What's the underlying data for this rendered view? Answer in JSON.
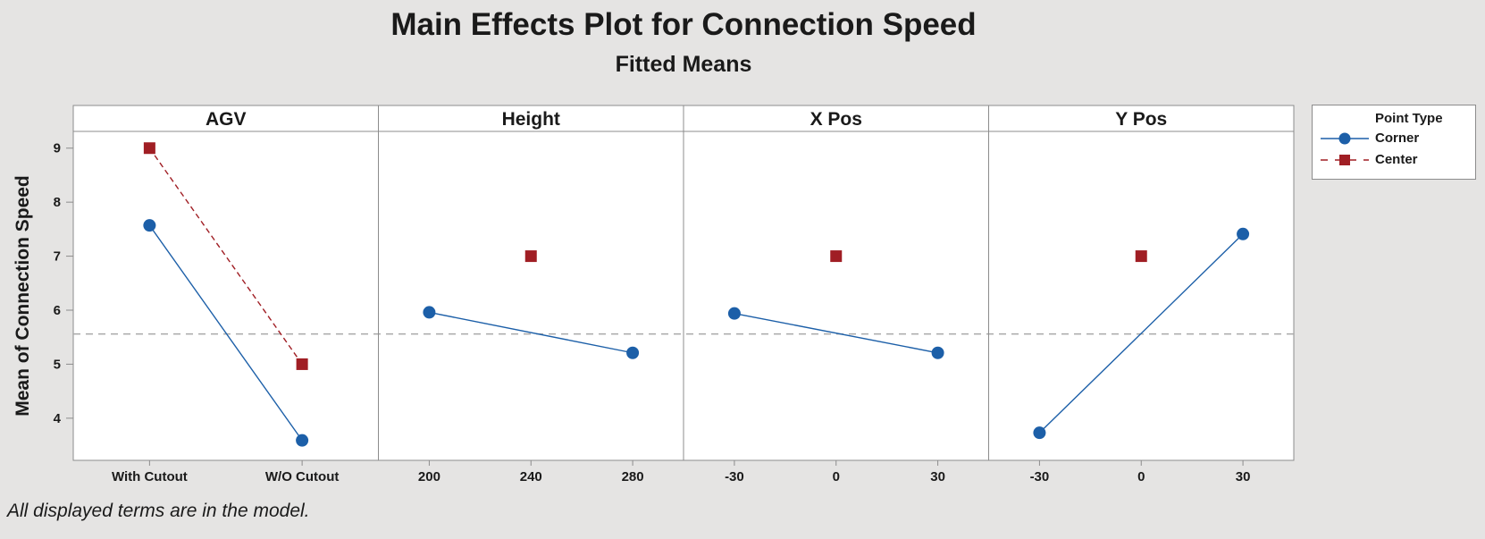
{
  "chart_data": {
    "type": "line",
    "title": "Main Effects Plot for Connection Speed",
    "subtitle": "Fitted Means",
    "ylabel": "Mean of Connection Speed",
    "ylim": [
      3.22,
      9.31
    ],
    "y_ticks": [
      9,
      8,
      7,
      6,
      5,
      4
    ],
    "grid": "off",
    "reference_line": {
      "value": 5.56,
      "style": "dashed",
      "color": "#A9A9A9"
    },
    "legend": {
      "position": "top-right",
      "title": "Point Type",
      "items": [
        {
          "label": "Corner",
          "marker": "circle",
          "line_style": "solid",
          "color": "#1C5FA8"
        },
        {
          "label": "Center",
          "marker": "square",
          "line_style": "dashed",
          "color": "#A01E24"
        }
      ]
    },
    "panels": [
      {
        "factor": "AGV",
        "categories": [
          "With Cutout",
          "W/O Cutout"
        ],
        "series": [
          {
            "name": "Corner",
            "values": [
              7.57,
              3.59
            ]
          },
          {
            "name": "Center",
            "values": [
              9.0,
              5.0
            ]
          }
        ]
      },
      {
        "factor": "Height",
        "categories": [
          "200",
          "240",
          "280"
        ],
        "series": [
          {
            "name": "Corner",
            "values": [
              5.96,
              null,
              5.21
            ]
          },
          {
            "name": "Center",
            "values": [
              null,
              7.0,
              null
            ]
          }
        ]
      },
      {
        "factor": "X Pos",
        "categories": [
          "-30",
          "0",
          "30"
        ],
        "series": [
          {
            "name": "Corner",
            "values": [
              5.94,
              null,
              5.21
            ]
          },
          {
            "name": "Center",
            "values": [
              null,
              7.0,
              null
            ]
          }
        ]
      },
      {
        "factor": "Y Pos",
        "categories": [
          "-30",
          "0",
          "30"
        ],
        "series": [
          {
            "name": "Corner",
            "values": [
              3.73,
              null,
              7.41
            ]
          },
          {
            "name": "Center",
            "values": [
              null,
              7.0,
              null
            ]
          }
        ]
      }
    ]
  },
  "footer_note": "All displayed terms are in the model.",
  "colors": {
    "background": "#E5E4E3",
    "panel_background": "#FFFFFF",
    "border": "#8C8C8C",
    "tick": "#8C8C8C",
    "text": "#1A1A1A"
  }
}
